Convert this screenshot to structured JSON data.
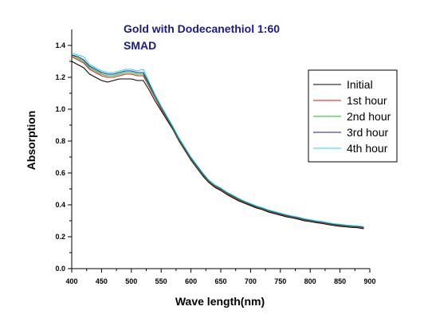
{
  "chart_data": {
    "type": "line",
    "title": "Gold with Dodecanethiol 1:60",
    "subtitle": "SMAD",
    "title_color": "#1a1a8c",
    "xlabel": "Wave length(nm)",
    "ylabel": "Absorption",
    "xlim": [
      400,
      900
    ],
    "ylim": [
      0.0,
      1.5
    ],
    "x_ticks": [
      "400",
      "450",
      "500",
      "550",
      "600",
      "650",
      "700",
      "750",
      "800",
      "850",
      "900"
    ],
    "y_ticks": [
      "0.0",
      "0.2",
      "0.4",
      "0.6",
      "0.8",
      "1.0",
      "1.2",
      "1.4"
    ],
    "grid": false,
    "legend_position": "right",
    "x": [
      400,
      410,
      420,
      430,
      440,
      450,
      460,
      470,
      480,
      490,
      500,
      510,
      520,
      530,
      540,
      550,
      560,
      570,
      580,
      590,
      600,
      610,
      620,
      630,
      640,
      650,
      660,
      670,
      680,
      690,
      700,
      710,
      720,
      730,
      740,
      750,
      760,
      770,
      780,
      790,
      800,
      810,
      820,
      830,
      840,
      850,
      860,
      870,
      880,
      890
    ],
    "series": [
      {
        "name": "Initial",
        "color": "#000000",
        "values": [
          1.3,
          1.28,
          1.26,
          1.22,
          1.2,
          1.18,
          1.17,
          1.18,
          1.19,
          1.19,
          1.19,
          1.18,
          1.18,
          1.12,
          1.05,
          0.99,
          0.93,
          0.87,
          0.8,
          0.74,
          0.68,
          0.63,
          0.58,
          0.54,
          0.51,
          0.49,
          0.465,
          0.445,
          0.425,
          0.41,
          0.395,
          0.38,
          0.37,
          0.355,
          0.345,
          0.335,
          0.325,
          0.318,
          0.31,
          0.3,
          0.295,
          0.288,
          0.283,
          0.276,
          0.27,
          0.265,
          0.262,
          0.258,
          0.256,
          0.25
        ]
      },
      {
        "name": "1st hour",
        "color": "#e01010",
        "values": [
          1.33,
          1.31,
          1.29,
          1.25,
          1.23,
          1.21,
          1.2,
          1.2,
          1.21,
          1.22,
          1.22,
          1.21,
          1.21,
          1.14,
          1.07,
          1.0,
          0.94,
          0.875,
          0.805,
          0.745,
          0.685,
          0.635,
          0.585,
          0.545,
          0.515,
          0.495,
          0.47,
          0.45,
          0.43,
          0.415,
          0.4,
          0.385,
          0.374,
          0.36,
          0.35,
          0.34,
          0.33,
          0.322,
          0.315,
          0.305,
          0.299,
          0.292,
          0.287,
          0.28,
          0.274,
          0.27,
          0.266,
          0.262,
          0.26,
          0.255
        ]
      },
      {
        "name": "2nd hour",
        "color": "#10c010",
        "values": [
          1.34,
          1.32,
          1.3,
          1.26,
          1.24,
          1.22,
          1.21,
          1.21,
          1.22,
          1.23,
          1.23,
          1.22,
          1.22,
          1.15,
          1.08,
          1.01,
          0.945,
          0.88,
          0.81,
          0.75,
          0.69,
          0.64,
          0.59,
          0.55,
          0.52,
          0.5,
          0.475,
          0.455,
          0.435,
          0.418,
          0.403,
          0.388,
          0.377,
          0.363,
          0.353,
          0.343,
          0.333,
          0.325,
          0.318,
          0.308,
          0.302,
          0.295,
          0.29,
          0.283,
          0.277,
          0.273,
          0.269,
          0.265,
          0.263,
          0.258
        ]
      },
      {
        "name": "3rd hour",
        "color": "#1a1aa0",
        "values": [
          1.34,
          1.33,
          1.31,
          1.27,
          1.25,
          1.23,
          1.22,
          1.22,
          1.23,
          1.24,
          1.24,
          1.23,
          1.23,
          1.16,
          1.085,
          1.015,
          0.95,
          0.885,
          0.815,
          0.755,
          0.695,
          0.645,
          0.595,
          0.553,
          0.523,
          0.503,
          0.478,
          0.458,
          0.438,
          0.42,
          0.405,
          0.39,
          0.379,
          0.365,
          0.355,
          0.345,
          0.335,
          0.327,
          0.32,
          0.31,
          0.304,
          0.297,
          0.292,
          0.285,
          0.279,
          0.275,
          0.271,
          0.267,
          0.265,
          0.26
        ]
      },
      {
        "name": "4th hour",
        "color": "#20d8e8",
        "values": [
          1.35,
          1.34,
          1.33,
          1.28,
          1.26,
          1.24,
          1.23,
          1.23,
          1.24,
          1.25,
          1.25,
          1.24,
          1.25,
          1.17,
          1.09,
          1.02,
          0.955,
          0.89,
          0.82,
          0.76,
          0.7,
          0.65,
          0.6,
          0.556,
          0.526,
          0.506,
          0.481,
          0.461,
          0.441,
          0.423,
          0.408,
          0.393,
          0.382,
          0.368,
          0.358,
          0.348,
          0.338,
          0.33,
          0.323,
          0.313,
          0.307,
          0.3,
          0.295,
          0.288,
          0.282,
          0.278,
          0.274,
          0.27,
          0.268,
          0.263
        ]
      }
    ]
  }
}
